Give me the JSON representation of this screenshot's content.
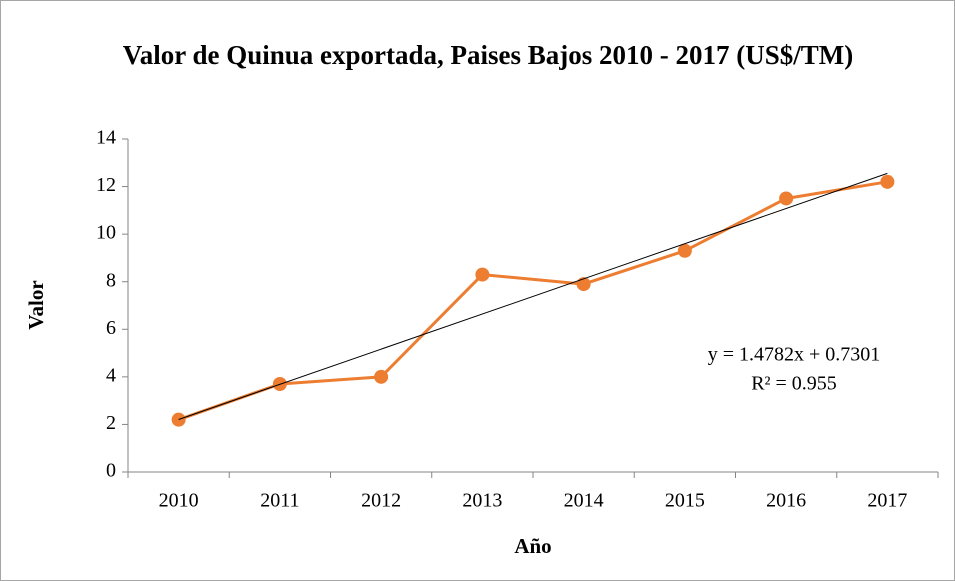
{
  "chart_data": {
    "type": "line",
    "title": "Valor de Quinua exportada, Paises Bajos 2010 - 2017 (US$/TM)",
    "x_label": "Año",
    "y_label": "Valor",
    "categories": [
      "2010",
      "2011",
      "2012",
      "2013",
      "2014",
      "2015",
      "2016",
      "2017"
    ],
    "series": [
      {
        "name": "Valor",
        "color": "#ed7d31",
        "values": [
          2.2,
          3.7,
          4.0,
          8.3,
          7.9,
          9.3,
          11.5,
          12.2
        ]
      }
    ],
    "ylim": [
      0,
      14
    ],
    "yticks": [
      0,
      2,
      4,
      6,
      8,
      10,
      12,
      14
    ],
    "grid": false,
    "trendline": {
      "slope": 1.4782,
      "intercept": 0.7301,
      "color": "#000000",
      "equation": "y = 1.4782x + 0.7301",
      "r2_label": "R² = 0.955"
    }
  }
}
